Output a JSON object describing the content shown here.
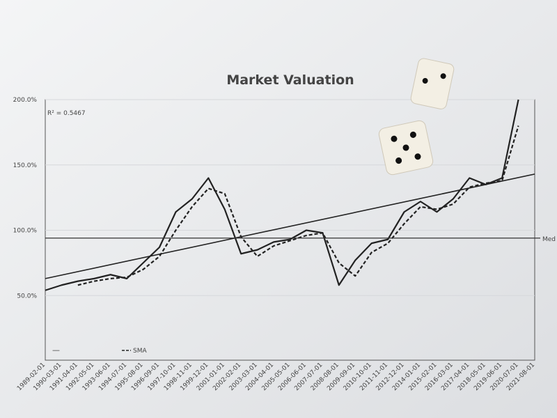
{
  "chart_data": {
    "type": "line",
    "title": "Market Valuation",
    "annotation": "R² = 0.5467",
    "categories": [
      "1989-02-01",
      "1990-03-01",
      "1991-04-01",
      "1992-05-01",
      "1993-06-01",
      "1994-07-01",
      "1995-08-01",
      "1996-09-01",
      "1997-10-01",
      "1998-11-01",
      "1999-12-01",
      "2001-01-01",
      "2002-02-01",
      "2003-03-01",
      "2004-04-01",
      "2005-05-01",
      "2006-06-01",
      "2007-07-01",
      "2008-08-01",
      "2009-09-01",
      "2010-10-01",
      "2011-11-01",
      "2012-12-01",
      "2014-01-01",
      "2015-02-01",
      "2016-03-01",
      "2017-04-01",
      "2018-05-01",
      "2019-06-01",
      "2020-07-01",
      "2021-08-01"
    ],
    "series": [
      {
        "legend_label": "—",
        "color": "#222222",
        "values": [
          54,
          58,
          61,
          63,
          66,
          63,
          75,
          87,
          114,
          124,
          140,
          116,
          82,
          85,
          91,
          93,
          100,
          98,
          58,
          77,
          90,
          93,
          114,
          122,
          114,
          124,
          140,
          135,
          140,
          200,
          null
        ]
      },
      {
        "name": "SMA",
        "color": "#222222",
        "dashed": true,
        "values": [
          null,
          null,
          58,
          61,
          63,
          64,
          70,
          80,
          100,
          118,
          132,
          128,
          95,
          80,
          88,
          92,
          96,
          98,
          75,
          65,
          83,
          90,
          105,
          118,
          116,
          120,
          133,
          136,
          138,
          180,
          null
        ]
      }
    ],
    "trend": {
      "values": [
        63,
        143
      ]
    },
    "median": {
      "label": "Med",
      "value": 94
    },
    "ylim": [
      0,
      200
    ],
    "yticks": [
      {
        "value": 50,
        "label": "50.0%"
      },
      {
        "value": 100,
        "label": "100.0%"
      },
      {
        "value": 150,
        "label": "150.0%"
      },
      {
        "value": 200,
        "label": "200.0%"
      }
    ],
    "grid": true
  }
}
